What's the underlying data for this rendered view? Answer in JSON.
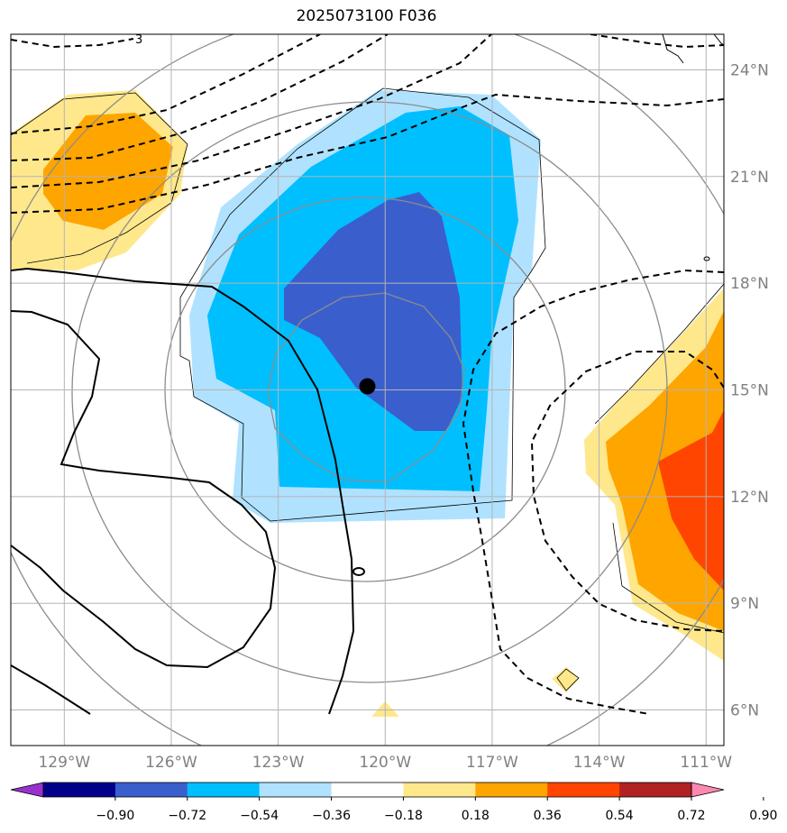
{
  "title": "2025073100 F036",
  "map": {
    "lon_range": [
      -130.5,
      -110.5
    ],
    "lat_range": [
      5.0,
      25.0
    ],
    "lat_ticks": [
      {
        "value": 24,
        "label": "24°N"
      },
      {
        "value": 21,
        "label": "21°N"
      },
      {
        "value": 18,
        "label": "18°N"
      },
      {
        "value": 15,
        "label": "15°N"
      },
      {
        "value": 12,
        "label": "12°N"
      },
      {
        "value": 9,
        "label": "9°N"
      },
      {
        "value": 6,
        "label": "6°N"
      }
    ],
    "lon_ticks": [
      {
        "value": -129,
        "label": "129°W"
      },
      {
        "value": -126,
        "label": "126°W"
      },
      {
        "value": -123,
        "label": "123°W"
      },
      {
        "value": -120,
        "label": "120°W"
      },
      {
        "value": -117,
        "label": "117°W"
      },
      {
        "value": -114,
        "label": "114°W"
      },
      {
        "value": -111,
        "label": "111°W"
      }
    ],
    "center_marker": {
      "lon": -120.5,
      "lat": 15.1
    },
    "contour_label": "3"
  },
  "colorbar": {
    "labels": [
      "−0.90",
      "−0.72",
      "−0.54",
      "−0.36",
      "−0.18",
      "0.18",
      "0.36",
      "0.54",
      "0.72",
      "0.90"
    ],
    "colors": [
      "#9932cc",
      "#00008b",
      "#3a5fcd",
      "#00bfff",
      "#b0e2ff",
      "#ffffff",
      "#ffe88c",
      "#ffa500",
      "#ff4500",
      "#b22222",
      "#ff88b0"
    ]
  }
}
